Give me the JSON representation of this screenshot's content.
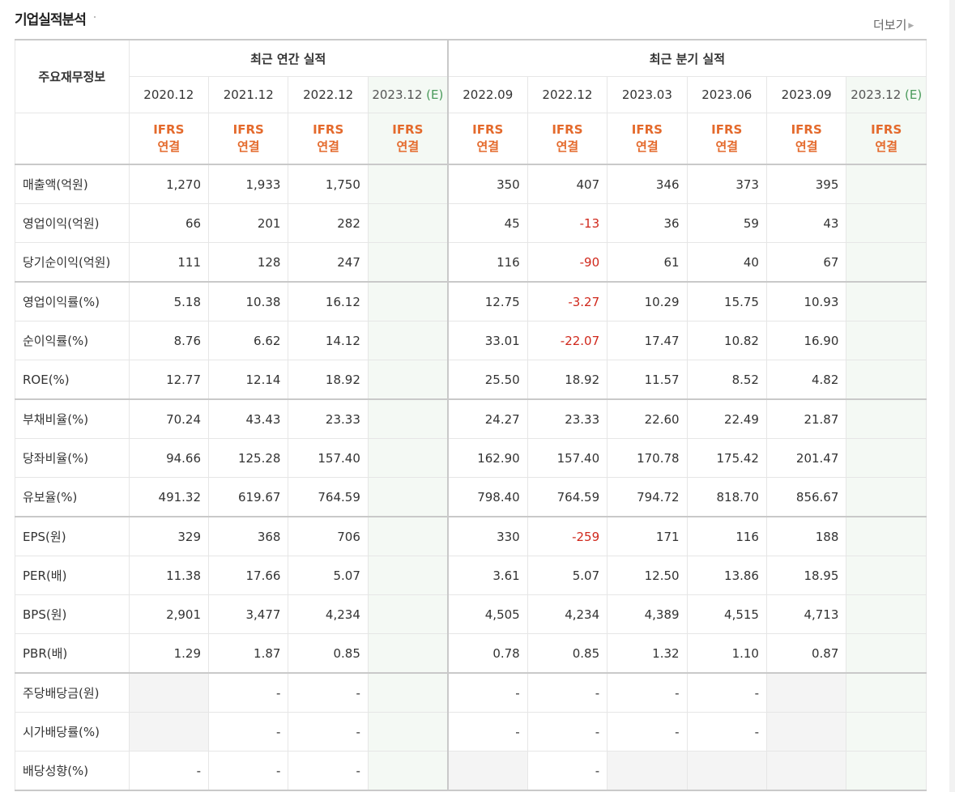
{
  "header": {
    "title": "기업실적분석",
    "more_label": "더보기",
    "more_arrow": "▶"
  },
  "table": {
    "row_header": "주요재무정보",
    "groups": [
      "최근 연간 실적",
      "최근 분기 실적"
    ],
    "periods": [
      "2020.12",
      "2021.12",
      "2022.12",
      "2023.12",
      "2022.09",
      "2022.12",
      "2023.03",
      "2023.06",
      "2023.09",
      "2023.12"
    ],
    "estimate_marker": "(E)",
    "basis": [
      "IFRS",
      "연결"
    ],
    "rows": [
      {
        "label": "매출액(억원)",
        "values": [
          "1,270",
          "1,933",
          "1,750",
          "",
          "350",
          "407",
          "346",
          "373",
          "395",
          ""
        ]
      },
      {
        "label": "영업이익(억원)",
        "values": [
          "66",
          "201",
          "282",
          "",
          "45",
          "-13",
          "36",
          "59",
          "43",
          ""
        ]
      },
      {
        "label": "당기순이익(억원)",
        "values": [
          "111",
          "128",
          "247",
          "",
          "116",
          "-90",
          "61",
          "40",
          "67",
          ""
        ]
      },
      {
        "label": "영업이익률(%)",
        "values": [
          "5.18",
          "10.38",
          "16.12",
          "",
          "12.75",
          "-3.27",
          "10.29",
          "15.75",
          "10.93",
          ""
        ]
      },
      {
        "label": "순이익률(%)",
        "values": [
          "8.76",
          "6.62",
          "14.12",
          "",
          "33.01",
          "-22.07",
          "17.47",
          "10.82",
          "16.90",
          ""
        ]
      },
      {
        "label": "ROE(%)",
        "values": [
          "12.77",
          "12.14",
          "18.92",
          "",
          "25.50",
          "18.92",
          "11.57",
          "8.52",
          "4.82",
          ""
        ]
      },
      {
        "label": "부채비율(%)",
        "values": [
          "70.24",
          "43.43",
          "23.33",
          "",
          "24.27",
          "23.33",
          "22.60",
          "22.49",
          "21.87",
          ""
        ]
      },
      {
        "label": "당좌비율(%)",
        "values": [
          "94.66",
          "125.28",
          "157.40",
          "",
          "162.90",
          "157.40",
          "170.78",
          "175.42",
          "201.47",
          ""
        ]
      },
      {
        "label": "유보율(%)",
        "values": [
          "491.32",
          "619.67",
          "764.59",
          "",
          "798.40",
          "764.59",
          "794.72",
          "818.70",
          "856.67",
          ""
        ]
      },
      {
        "label": "EPS(원)",
        "values": [
          "329",
          "368",
          "706",
          "",
          "330",
          "-259",
          "171",
          "116",
          "188",
          ""
        ]
      },
      {
        "label": "PER(배)",
        "values": [
          "11.38",
          "17.66",
          "5.07",
          "",
          "3.61",
          "5.07",
          "12.50",
          "13.86",
          "18.95",
          ""
        ]
      },
      {
        "label": "BPS(원)",
        "values": [
          "2,901",
          "3,477",
          "4,234",
          "",
          "4,505",
          "4,234",
          "4,389",
          "4,515",
          "4,713",
          ""
        ]
      },
      {
        "label": "PBR(배)",
        "values": [
          "1.29",
          "1.87",
          "0.85",
          "",
          "0.78",
          "0.85",
          "1.32",
          "1.10",
          "0.87",
          ""
        ]
      },
      {
        "label": "주당배당금(원)",
        "values": [
          "",
          "-",
          "-",
          "",
          "-",
          "-",
          "-",
          "-",
          "",
          ""
        ]
      },
      {
        "label": "시가배당률(%)",
        "values": [
          "",
          "-",
          "-",
          "",
          "-",
          "-",
          "-",
          "-",
          "",
          ""
        ]
      },
      {
        "label": "배당성향(%)",
        "values": [
          "-",
          "-",
          "-",
          "",
          "",
          "-",
          "",
          "",
          "",
          ""
        ]
      }
    ]
  },
  "colors": {
    "ifrs": "#e46a2c",
    "negative": "#d0281c",
    "estimate_marker": "#4a9a5b",
    "estimate_bg": "#f4f9f4",
    "empty_bg": "#f4f4f4"
  }
}
